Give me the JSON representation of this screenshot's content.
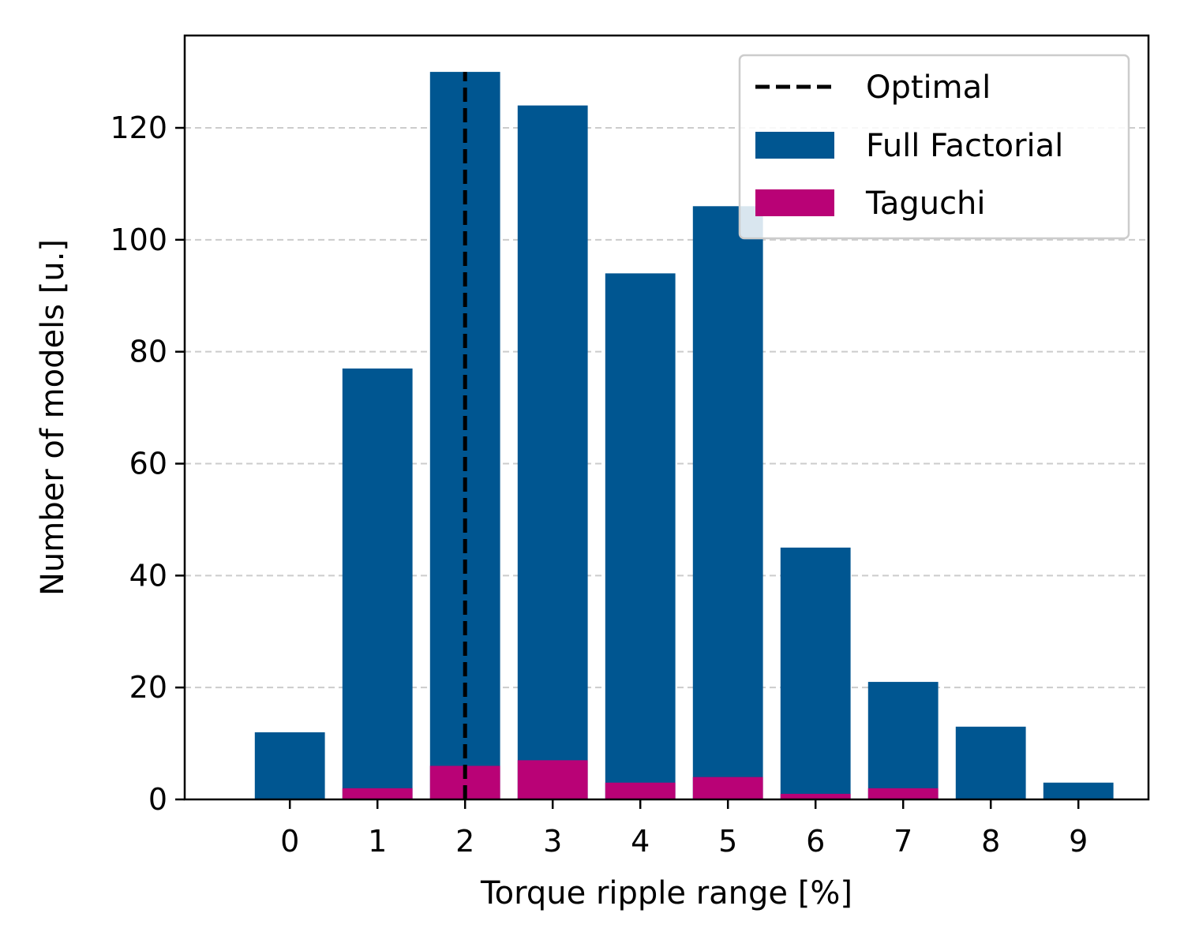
{
  "chart_data": {
    "type": "bar",
    "title": "",
    "xlabel": "Torque ripple range [%]",
    "ylabel": "Number of models [u.]",
    "categories": [
      0,
      1,
      2,
      3,
      4,
      5,
      6,
      7,
      8,
      9
    ],
    "xlim": [
      -1.2,
      9.8
    ],
    "ylim": [
      0,
      136.5
    ],
    "yticks": [
      0,
      20,
      40,
      60,
      80,
      100,
      120
    ],
    "grid": "y-dashed",
    "legend_position": "top-right",
    "series": [
      {
        "name": "Full Factorial",
        "color": "#005691",
        "values": [
          12,
          77,
          130,
          124,
          94,
          106,
          45,
          21,
          13,
          3
        ]
      },
      {
        "name": "Taguchi",
        "color": "#b90276",
        "values": [
          0,
          2,
          6,
          7,
          3,
          4,
          1,
          2,
          0,
          0
        ]
      }
    ],
    "reference_line": {
      "name": "Optimal",
      "x": 2,
      "y_max": 130,
      "color": "#000000",
      "style": "dashed"
    }
  }
}
